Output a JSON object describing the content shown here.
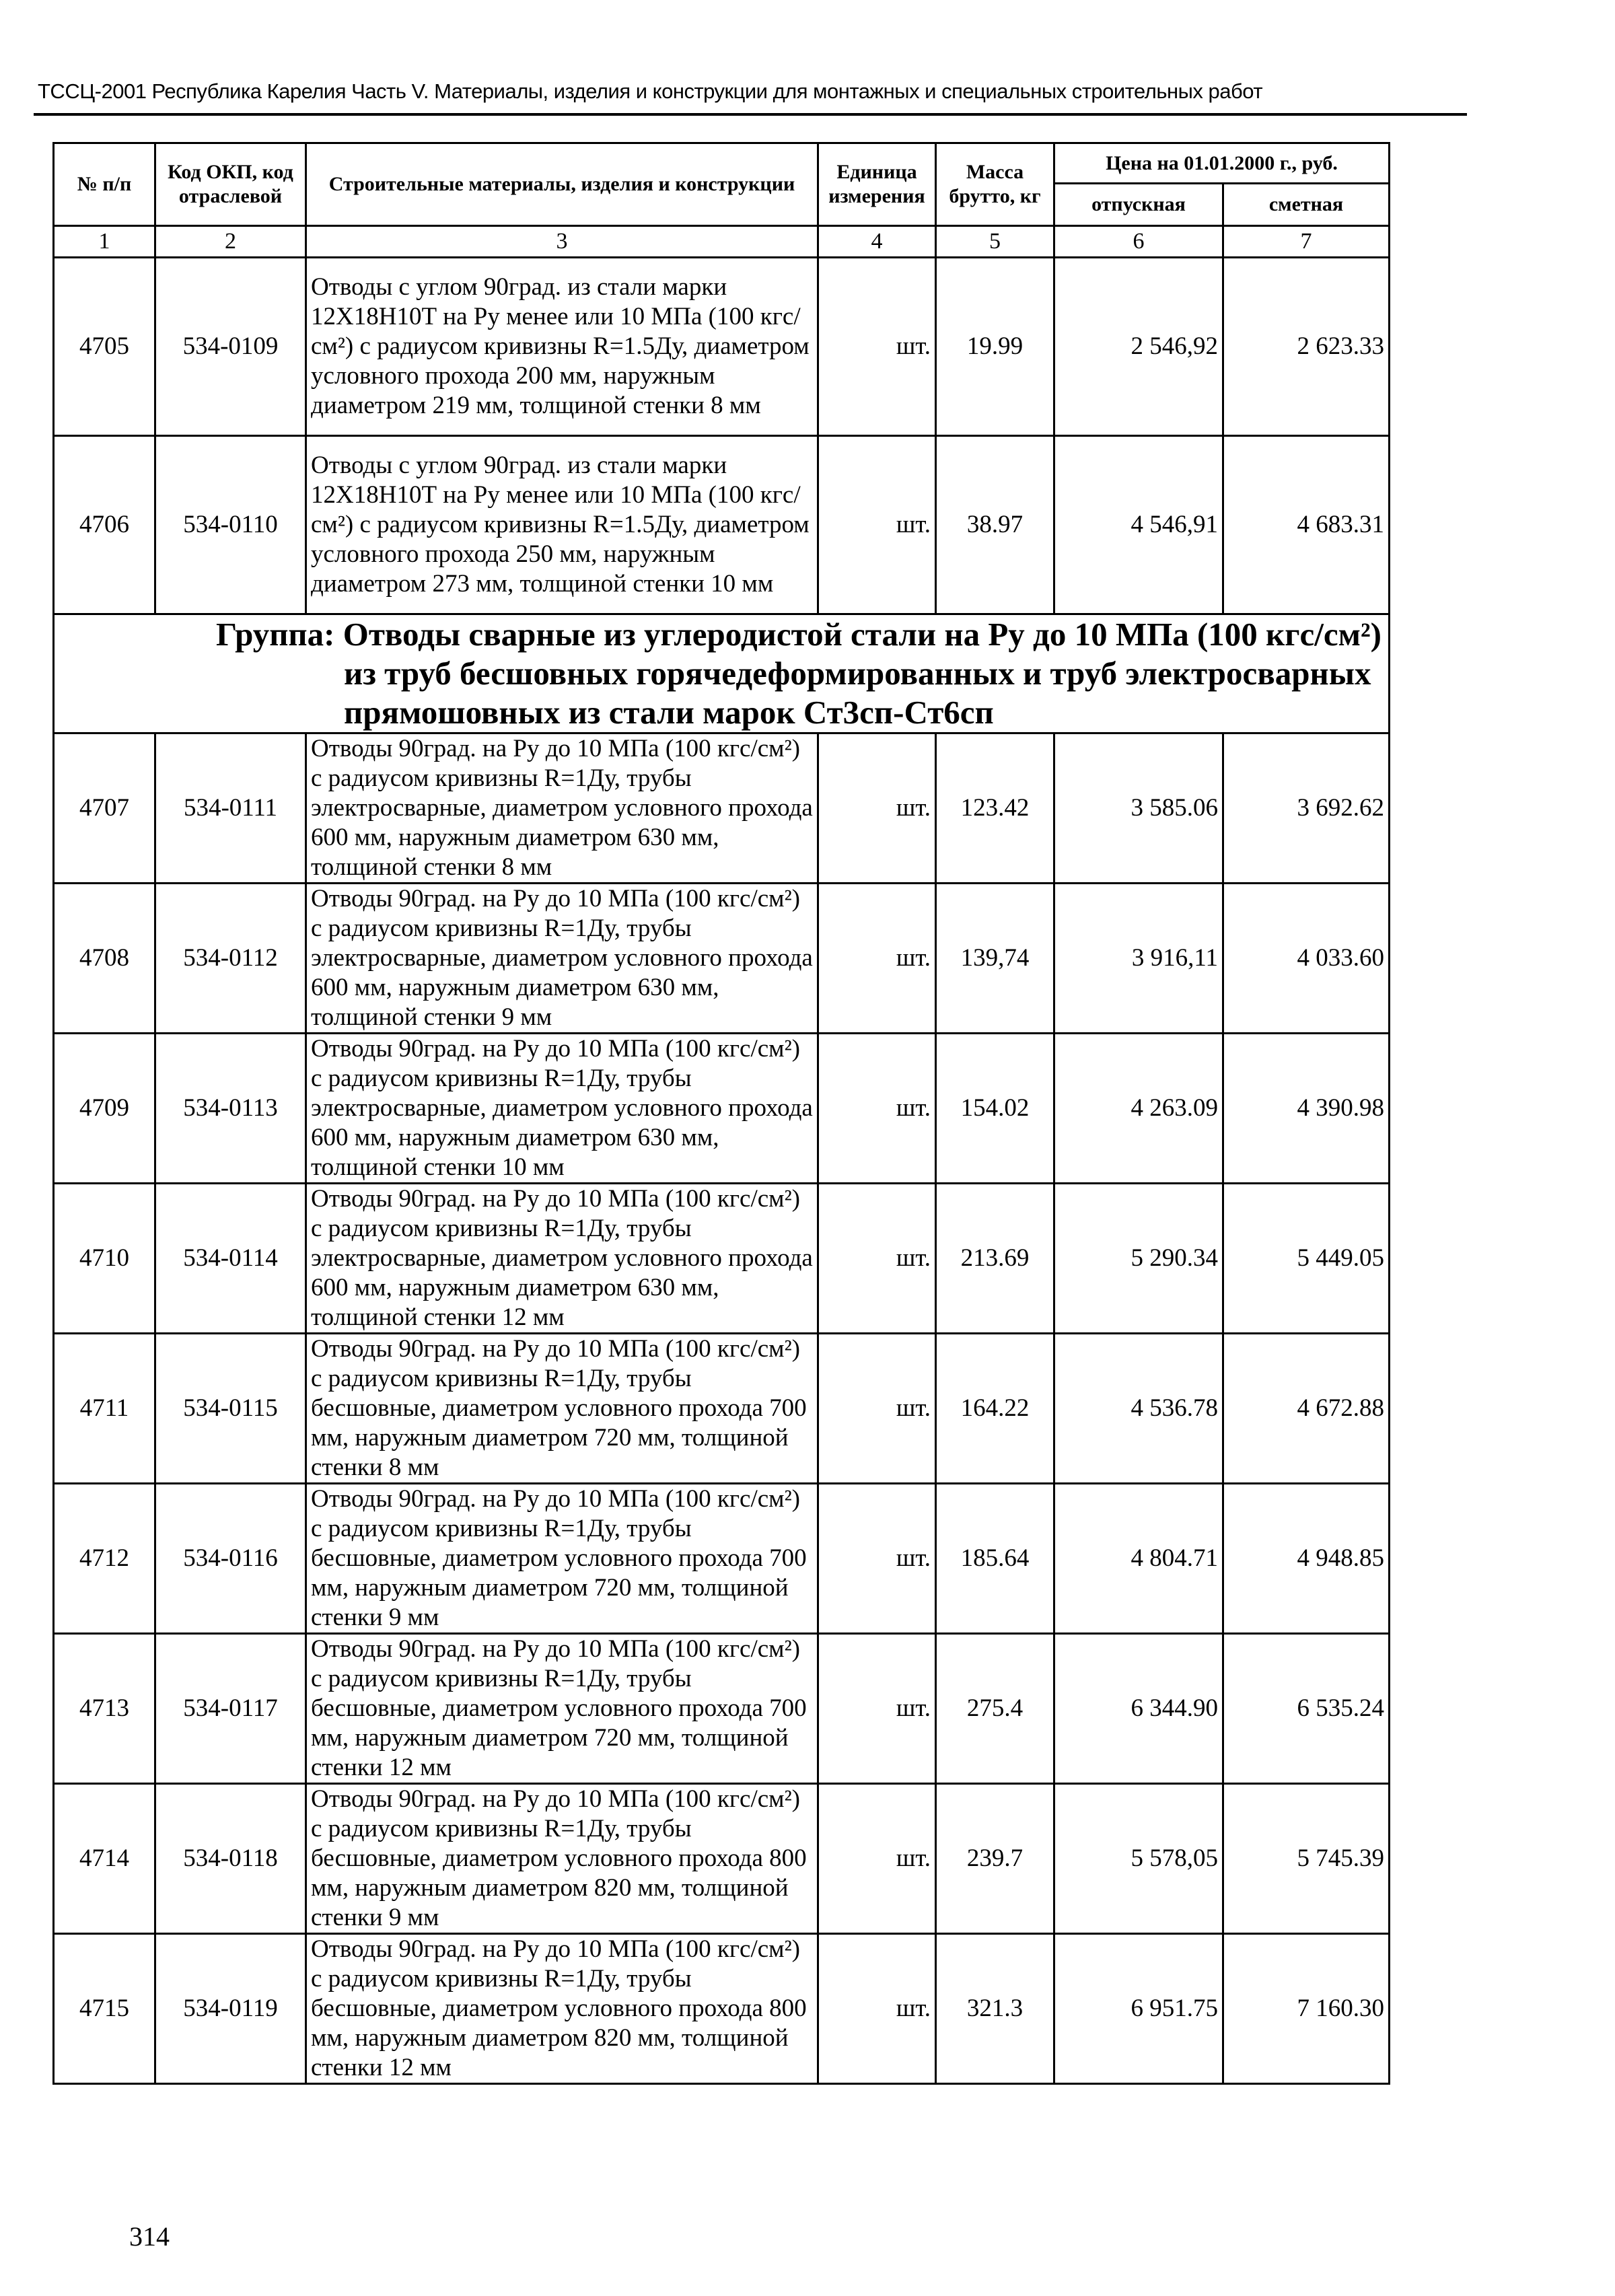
{
  "running_head": "ТССЦ-2001 Республика Карелия Часть V. Материалы, изделия и конструкции для монтажных и специальных строительных работ",
  "table": {
    "headers": {
      "num": "№ п/п",
      "code": "Код ОКП, код отраслевой",
      "name": "Строительные материалы, изделия и конструкции",
      "unit": "Единица измерения",
      "mass": "Масса брутто, кг",
      "price": "Цена на 01.01.2000 г., руб.",
      "release": "отпускная",
      "estimate": "сметная"
    },
    "column_numbers": [
      "1",
      "2",
      "3",
      "4",
      "5",
      "6",
      "7"
    ],
    "rows_before_group": [
      {
        "num": "4705",
        "code": "534-0109",
        "desc": "Отводы с углом 90град. из стали марки 12Х18Н10Т на Ру менее или 10 МПа (100 кгс/см²) с радиусом кривизны R=1.5Ду, диаметром условного прохода 200 мм, наружным диаметром 219 мм, толщиной стенки 8 мм",
        "unit": "шт.",
        "mass": "19.99",
        "release": "2 546,92",
        "estimate": "2 623.33"
      },
      {
        "num": "4706",
        "code": "534-0110",
        "desc": "Отводы с углом 90град. из стали марки 12Х18Н10Т на Ру менее или 10 МПа (100 кгс/см²) с радиусом кривизны R=1.5Ду, диаметром условного прохода 250 мм, наружным диаметром 273 мм, толщиной стенки 10 мм",
        "unit": "шт.",
        "mass": "38.97",
        "release": "4 546,91",
        "estimate": "4 683.31"
      }
    ],
    "group": "Группа: Отводы сварные из углеродистой стали на Ру до 10 МПа (100 кгс/см²) из труб бесшовных горячедеформированных и труб электросварных прямошовных из стали марок Ст3сп-Ст6сп",
    "rows_after_group": [
      {
        "num": "4707",
        "code": "534-0111",
        "desc": "Отводы 90град. на Ру до 10 МПа (100 кгс/см²) с радиусом кривизны R=1Ду, трубы электросварные, диаметром условного прохода 600 мм, наружным диаметром 630 мм, толщиной стенки 8 мм",
        "unit": "шт.",
        "mass": "123.42",
        "release": "3 585.06",
        "estimate": "3 692.62"
      },
      {
        "num": "4708",
        "code": "534-0112",
        "desc": "Отводы 90град. на Ру до 10 МПа (100 кгс/см²) с радиусом кривизны R=1Ду, трубы электросварные, диаметром условного прохода 600 мм, наружным диаметром 630 мм, толщиной стенки 9 мм",
        "unit": "шт.",
        "mass": "139,74",
        "release": "3 916,11",
        "estimate": "4 033.60"
      },
      {
        "num": "4709",
        "code": "534-0113",
        "desc": "Отводы 90град. на Ру до 10 МПа (100 кгс/см²) с радиусом кривизны R=1Ду, трубы электросварные, диаметром условного прохода 600 мм, наружным диаметром 630 мм, толщиной стенки 10 мм",
        "unit": "шт.",
        "mass": "154.02",
        "release": "4 263.09",
        "estimate": "4 390.98"
      },
      {
        "num": "4710",
        "code": "534-0114",
        "desc": "Отводы 90град. на Ру до 10 МПа (100 кгс/см²) с радиусом кривизны R=1Ду, трубы электросварные, диаметром условного прохода 600 мм, наружным диаметром 630 мм, толщиной стенки 12 мм",
        "unit": "шт.",
        "mass": "213.69",
        "release": "5 290.34",
        "estimate": "5 449.05"
      },
      {
        "num": "4711",
        "code": "534-0115",
        "desc": "Отводы 90град. на Ру до 10 МПа (100 кгс/см²) с радиусом кривизны R=1Ду, трубы бесшовные, диаметром условного прохода 700 мм, наружным диаметром 720 мм, толщиной стенки 8 мм",
        "unit": "шт.",
        "mass": "164.22",
        "release": "4 536.78",
        "estimate": "4 672.88"
      },
      {
        "num": "4712",
        "code": "534-0116",
        "desc": "Отводы 90град. на Ру до 10 МПа (100 кгс/см²) с радиусом кривизны R=1Ду, трубы бесшовные, диаметром условного прохода 700 мм, наружным диаметром 720 мм, толщиной стенки 9 мм",
        "unit": "шт.",
        "mass": "185.64",
        "release": "4 804.71",
        "estimate": "4 948.85"
      },
      {
        "num": "4713",
        "code": "534-0117",
        "desc": "Отводы 90град. на Ру до 10 МПа (100 кгс/см²) с радиусом кривизны R=1Ду, трубы бесшовные, диаметром условного прохода 700 мм, наружным диаметром 720 мм, толщиной стенки 12 мм",
        "unit": "шт.",
        "mass": "275.4",
        "release": "6 344.90",
        "estimate": "6 535.24"
      },
      {
        "num": "4714",
        "code": "534-0118",
        "desc": "Отводы 90град. на Ру до 10 МПа (100 кгс/см²) с радиусом кривизны R=1Ду, трубы бесшовные, диаметром условного прохода 800 мм, наружным диаметром 820 мм, толщиной стенки 9 мм",
        "unit": "шт.",
        "mass": "239.7",
        "release": "5 578,05",
        "estimate": "5 745.39"
      },
      {
        "num": "4715",
        "code": "534-0119",
        "desc": "Отводы 90град. на Ру до 10 МПа (100 кгс/см²) с радиусом кривизны R=1Ду, трубы бесшовные, диаметром условного прохода 800 мм, наружным диаметром 820 мм, толщиной стенки 12 мм",
        "unit": "шт.",
        "mass": "321.3",
        "release": "6 951.75",
        "estimate": "7 160.30"
      }
    ]
  },
  "page_number": "314"
}
